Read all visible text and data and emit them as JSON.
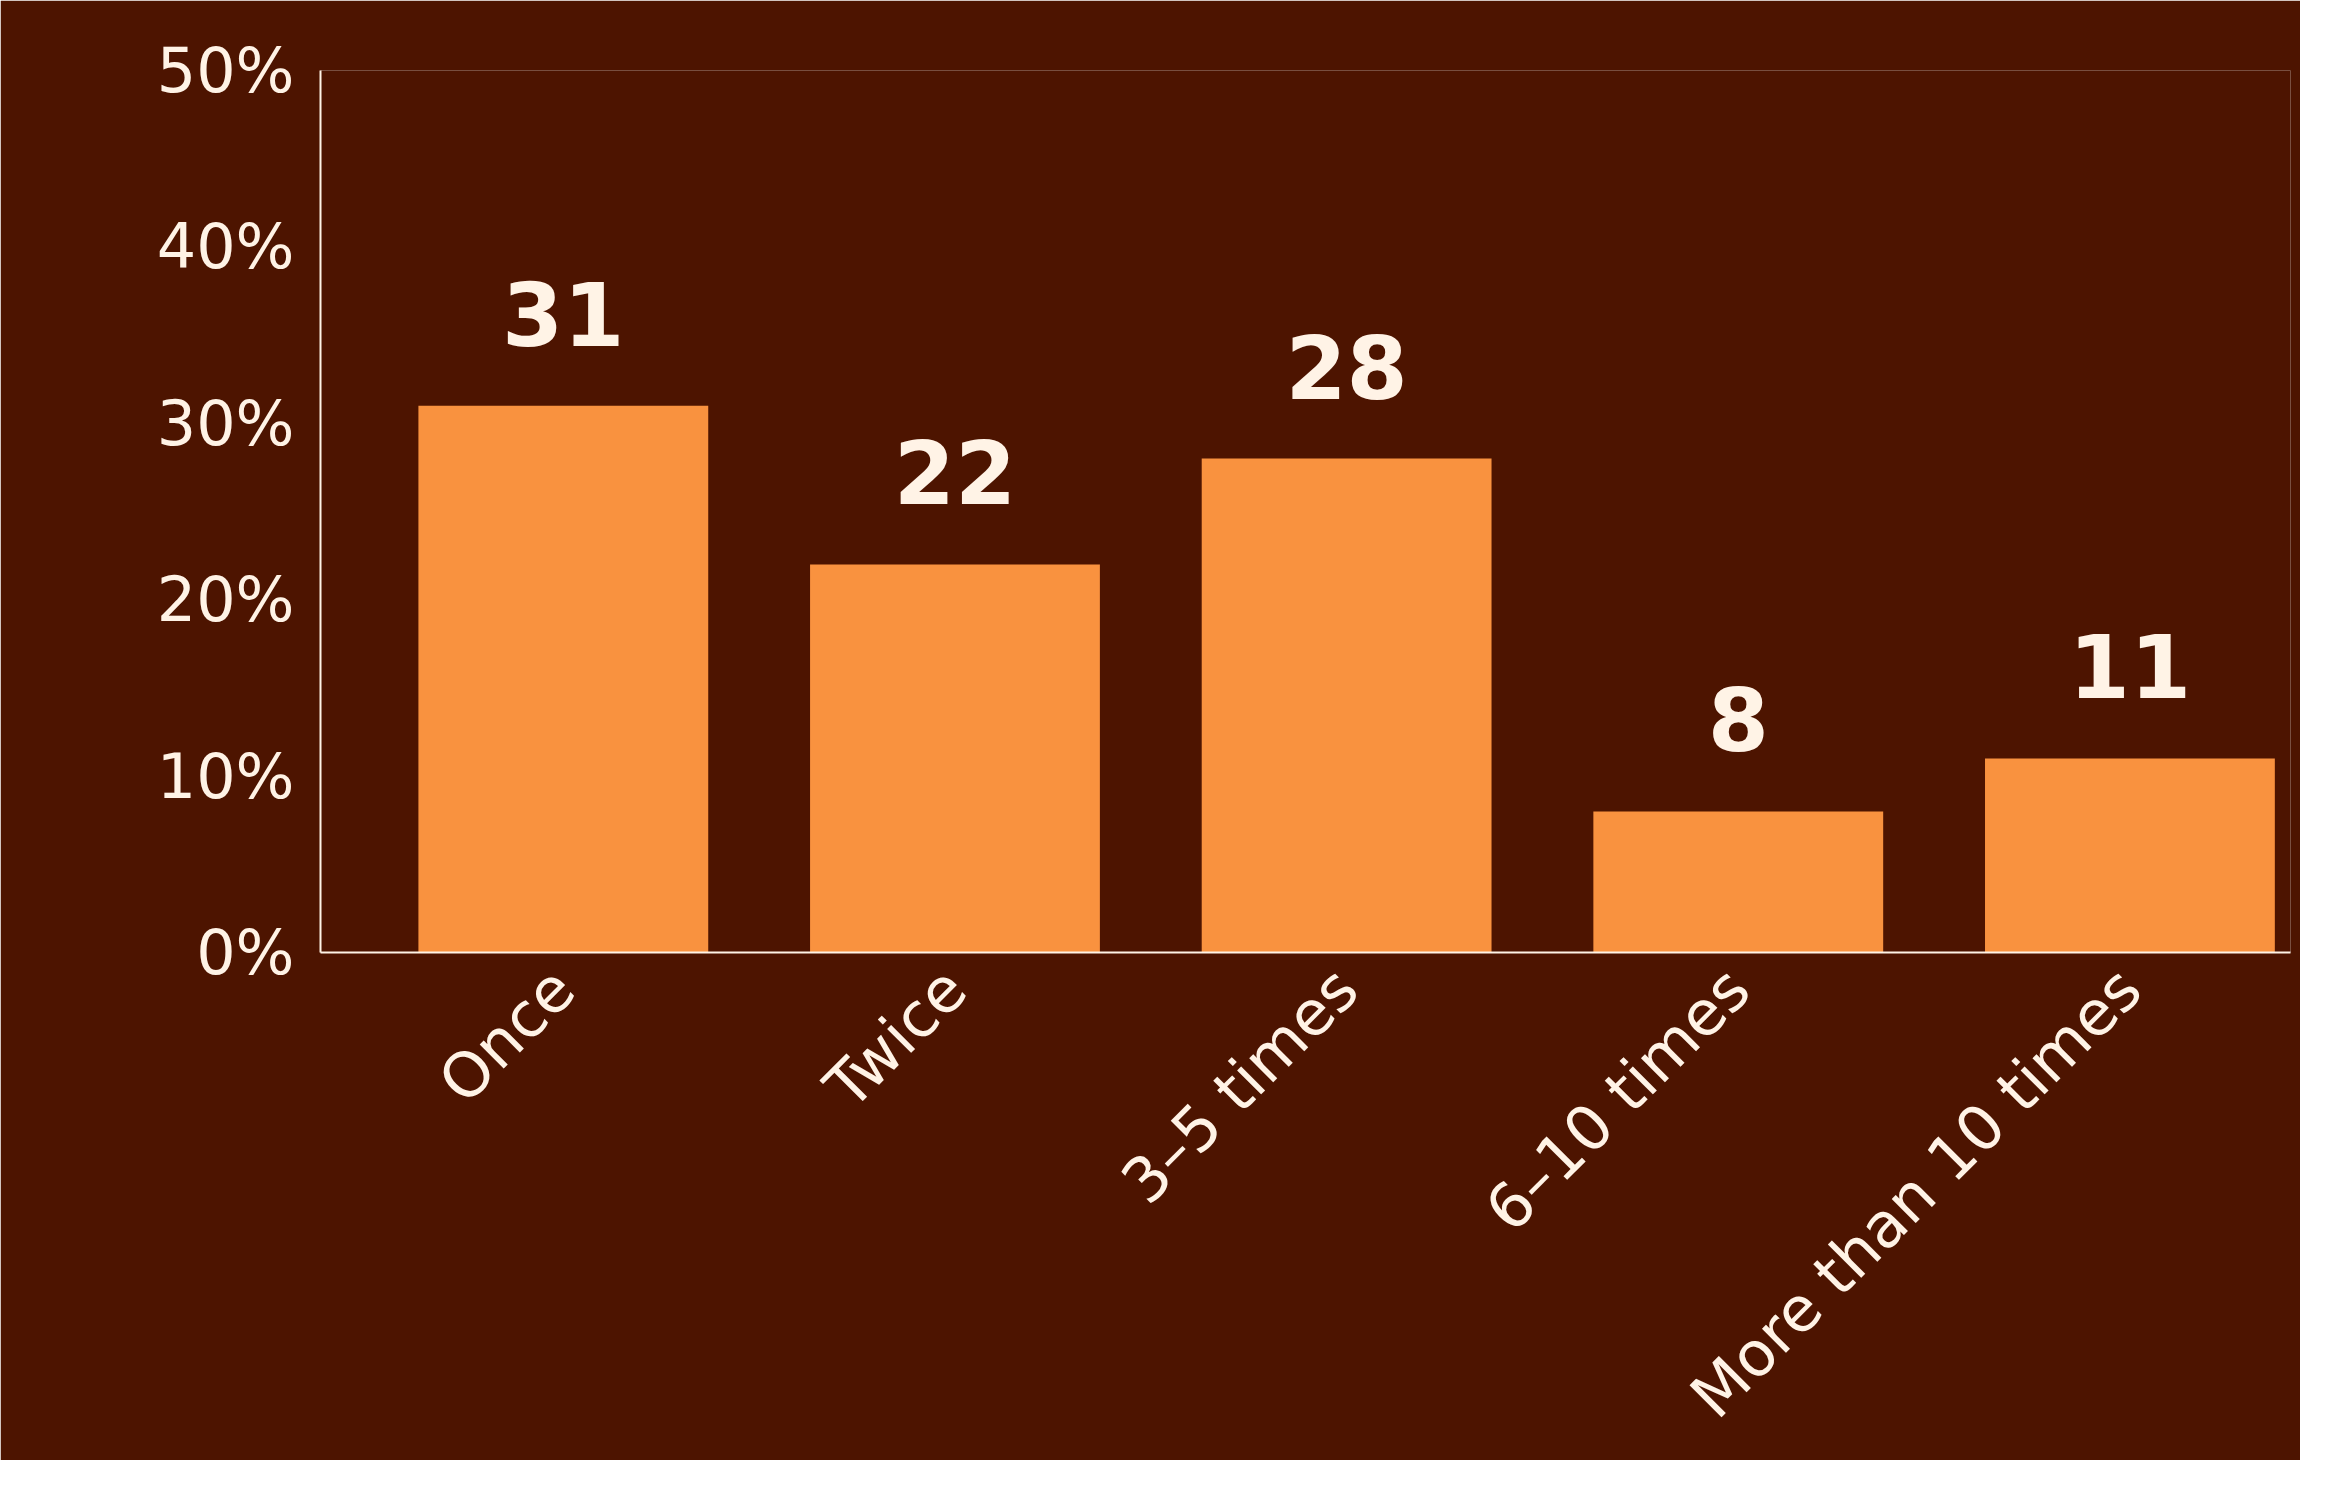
{
  "chart_data": {
    "type": "bar",
    "categories": [
      "Once",
      "Twice",
      "3–5 times",
      "6–10 times",
      "More than 10 times"
    ],
    "values": [
      31,
      22,
      28,
      8,
      11
    ],
    "color": "#f9923f",
    "ylim": [
      0,
      50
    ],
    "yticks": [
      {
        "value": 0,
        "label": "0%"
      },
      {
        "value": 10,
        "label": "10%"
      },
      {
        "value": 20,
        "label": "20%"
      },
      {
        "value": 30,
        "label": "30%"
      },
      {
        "value": 40,
        "label": "40%"
      },
      {
        "value": 50,
        "label": "50%"
      }
    ],
    "data_labels": true,
    "grid": false
  }
}
